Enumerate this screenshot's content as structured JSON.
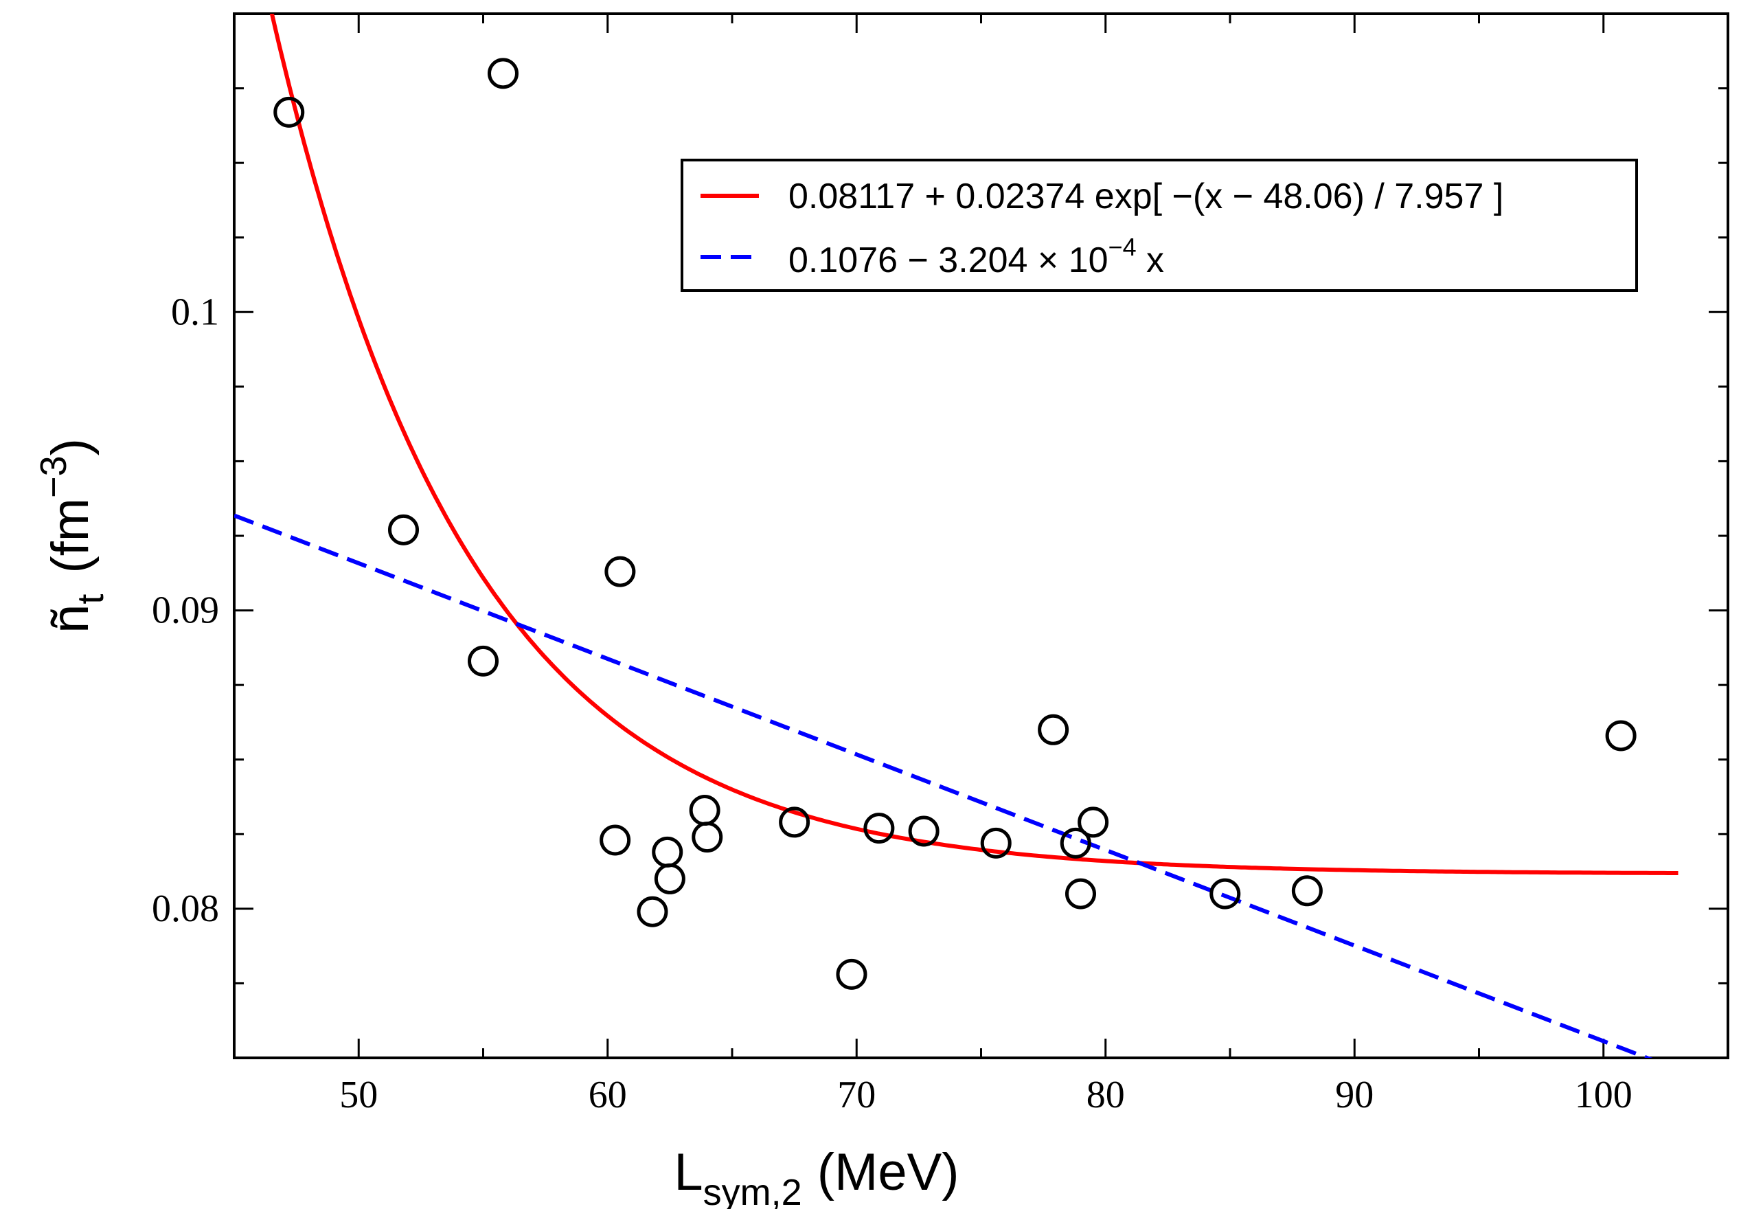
{
  "chart_data": {
    "type": "scatter",
    "title": "",
    "xlabel": {
      "main": "L",
      "sub": "sym,2",
      "unit": "(MeV)"
    },
    "ylabel": {
      "main": "ñ",
      "sub": "t",
      "unit_open": "(fm",
      "unit_sup": "−3",
      "unit_close": ")"
    },
    "xlim": [
      45,
      105
    ],
    "ylim": [
      0.075,
      0.11
    ],
    "x_ticks": [
      50,
      60,
      70,
      80,
      90,
      100
    ],
    "x_tick_labels": [
      "50",
      "60",
      "70",
      "80",
      "90",
      "100"
    ],
    "x_minor_step": 5,
    "y_ticks": [
      0.08,
      0.09,
      0.1
    ],
    "y_tick_labels": [
      "0.08",
      "0.09",
      "0.1"
    ],
    "y_minor_step": 0.0025,
    "grid": false,
    "legend_position": "top-right",
    "series": [
      {
        "name": "data",
        "kind": "points",
        "marker": "open-circle",
        "color": "#000000",
        "points": [
          [
            47.2,
            0.1067
          ],
          [
            55.8,
            0.108
          ],
          [
            51.8,
            0.0927
          ],
          [
            60.5,
            0.0913
          ],
          [
            55.0,
            0.0883
          ],
          [
            60.3,
            0.0823
          ],
          [
            62.4,
            0.0819
          ],
          [
            62.5,
            0.081
          ],
          [
            61.8,
            0.0799
          ],
          [
            63.9,
            0.0833
          ],
          [
            64.0,
            0.0824
          ],
          [
            67.5,
            0.0829
          ],
          [
            69.8,
            0.0778
          ],
          [
            70.9,
            0.0827
          ],
          [
            72.7,
            0.0826
          ],
          [
            75.6,
            0.0822
          ],
          [
            77.9,
            0.086
          ],
          [
            78.8,
            0.0822
          ],
          [
            79.5,
            0.0829
          ],
          [
            79.0,
            0.0805
          ],
          [
            84.8,
            0.0805
          ],
          [
            88.1,
            0.0806
          ],
          [
            100.7,
            0.0858
          ]
        ]
      },
      {
        "name": "exp-fit",
        "kind": "exp",
        "color": "#ff0000",
        "dash": "solid",
        "params": {
          "a": 0.08117,
          "b": 0.02374,
          "x0": 48.06,
          "tau": 7.957
        },
        "x_range": [
          46.4,
          103.0
        ],
        "legend_label": "0.08117 + 0.02374 exp[ −(x − 48.06) / 7.957 ]"
      },
      {
        "name": "linear-fit",
        "kind": "linear",
        "color": "#0000ff",
        "dash": "dashed",
        "params": {
          "intercept": 0.1076,
          "slope": -0.0003204
        },
        "x_range": [
          45,
          105
        ],
        "legend_label_parts": {
          "pre": "0.1076 − 3.204 × 10",
          "sup": "−4",
          "post": " x"
        }
      }
    ]
  }
}
